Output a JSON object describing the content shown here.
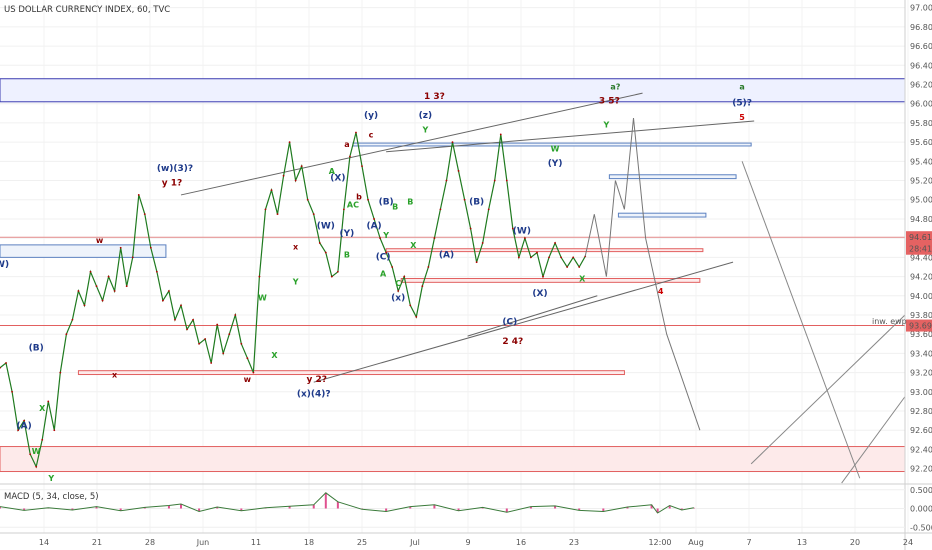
{
  "chart_data": {
    "type": "line",
    "title": "US DOLLAR CURRENCY INDEX, 60, TVC",
    "x_ticks": [
      "14",
      "21",
      "28",
      "Jun",
      "11",
      "18",
      "25",
      "Jul",
      "9",
      "16",
      "23",
      "12:00",
      "Aug",
      "7",
      "13",
      "20",
      "24"
    ],
    "y_ticks": [
      "97.00",
      "96.80",
      "96.60",
      "96.40",
      "96.20",
      "96.00",
      "95.80",
      "95.60",
      "95.40",
      "95.20",
      "95.00",
      "94.80",
      "94.60",
      "94.40",
      "94.20",
      "94.00",
      "93.80",
      "93.60",
      "93.40",
      "93.20",
      "93.00",
      "92.80",
      "92.60",
      "92.40",
      "92.20"
    ],
    "ylim": [
      92.04,
      97.08
    ],
    "price_tags": [
      {
        "text": "94.61",
        "value": 94.61
      },
      {
        "text": "28:41",
        "value": 94.49
      },
      {
        "text": "93.69",
        "value": 93.69
      }
    ],
    "inv_label": "inw. ewp",
    "series": [
      {
        "t": [
          0,
          2,
          4,
          6,
          8,
          10,
          12,
          14,
          16,
          18,
          20,
          22,
          24,
          26,
          28,
          30,
          32,
          34,
          36,
          38,
          40,
          42,
          44,
          46,
          48,
          50,
          52,
          54,
          56,
          58,
          60,
          62,
          64,
          66,
          68,
          70,
          72,
          74,
          76,
          78,
          80,
          82,
          84,
          86,
          88,
          90,
          92,
          94,
          96,
          98,
          100,
          102,
          104,
          106,
          108,
          110,
          112,
          114,
          116,
          118,
          120,
          122,
          124,
          126,
          128,
          130,
          132,
          134,
          136,
          138,
          140,
          142,
          144,
          146,
          148,
          150,
          152,
          154,
          156,
          158,
          160,
          162,
          164,
          166,
          168,
          170,
          172,
          174,
          176,
          178,
          180,
          182,
          184,
          186,
          188,
          190,
          192,
          194
        ],
        "values": [
          93.25,
          93.3,
          93.0,
          92.6,
          92.7,
          92.35,
          92.22,
          92.5,
          92.9,
          92.6,
          93.2,
          93.6,
          93.75,
          94.05,
          93.9,
          94.25,
          94.1,
          93.95,
          94.2,
          94.05,
          94.5,
          94.1,
          94.4,
          95.05,
          94.85,
          94.5,
          94.25,
          93.95,
          94.05,
          93.75,
          93.9,
          93.65,
          93.75,
          93.5,
          93.55,
          93.3,
          93.7,
          93.4,
          93.6,
          93.8,
          93.5,
          93.35,
          93.2,
          94.2,
          94.9,
          95.1,
          94.85,
          95.25,
          95.6,
          95.2,
          95.35,
          95.0,
          94.85,
          94.55,
          94.45,
          94.2,
          94.25,
          94.9,
          95.45,
          95.7,
          95.35,
          95.0,
          94.8,
          94.6,
          94.45,
          94.3,
          94.05,
          94.2,
          93.9,
          93.78,
          94.1,
          94.3,
          94.6,
          94.9,
          95.2,
          95.6,
          95.3,
          95.0,
          94.7,
          94.35,
          94.55,
          94.9,
          95.2,
          95.68,
          95.2,
          94.7,
          94.4,
          94.6,
          94.4,
          94.45,
          94.2,
          94.4,
          94.55,
          94.4,
          94.3,
          94.4,
          94.3,
          94.41
        ],
        "name": ""
      }
    ],
    "projection": {
      "t": [
        194,
        197,
        201,
        204,
        207,
        210,
        214,
        221,
        232
      ],
      "values": [
        94.41,
        94.85,
        94.2,
        95.2,
        94.9,
        95.85,
        94.6,
        93.6,
        92.6
      ]
    },
    "wave_labels": [
      {
        "text": "(W)",
        "color": "#1e3a8a",
        "t": 0,
        "v": 94.3
      },
      {
        "text": "(A)",
        "color": "#1e3a8a",
        "t": 8,
        "v": 92.62
      },
      {
        "text": "(B)",
        "color": "#1e3a8a",
        "t": 12,
        "v": 93.43
      },
      {
        "text": "X",
        "color": "#2aa12a",
        "t": 14,
        "v": 92.8
      },
      {
        "text": "W",
        "color": "#2aa12a",
        "t": 12,
        "v": 92.35
      },
      {
        "text": "Y",
        "color": "#2aa12a",
        "t": 17,
        "v": 92.07
      },
      {
        "text": "w",
        "color": "#8b0000",
        "t": 33,
        "v": 94.55
      },
      {
        "text": "x",
        "color": "#8b0000",
        "t": 38,
        "v": 93.15
      },
      {
        "text": "(w)(3)?",
        "color": "#1e3a8a",
        "t": 58,
        "v": 95.3
      },
      {
        "text": "y 1?",
        "color": "#8b0000",
        "t": 57,
        "v": 95.15
      },
      {
        "text": "w",
        "color": "#8b0000",
        "t": 82,
        "v": 93.1
      },
      {
        "text": "W",
        "color": "#2aa12a",
        "t": 87,
        "v": 93.95
      },
      {
        "text": "X",
        "color": "#2aa12a",
        "t": 91,
        "v": 93.35
      },
      {
        "text": "Y",
        "color": "#2aa12a",
        "t": 98,
        "v": 94.12
      },
      {
        "text": "x",
        "color": "#8b0000",
        "t": 98,
        "v": 94.48
      },
      {
        "text": "y 2?",
        "color": "#8b0000",
        "t": 105,
        "v": 93.1
      },
      {
        "text": "(x)(4)?",
        "color": "#1e3a8a",
        "t": 104,
        "v": 92.95
      },
      {
        "text": "(W)",
        "color": "#1e3a8a",
        "t": 108,
        "v": 94.7
      },
      {
        "text": "(X)",
        "color": "#1e3a8a",
        "t": 112,
        "v": 95.2
      },
      {
        "text": "(Y)",
        "color": "#1e3a8a",
        "t": 115,
        "v": 94.62
      },
      {
        "text": "B",
        "color": "#2aa12a",
        "t": 115,
        "v": 94.4
      },
      {
        "text": "A",
        "color": "#2aa12a",
        "t": 110,
        "v": 95.27
      },
      {
        "text": "AC",
        "color": "#2aa12a",
        "t": 117,
        "v": 94.92
      },
      {
        "text": "a",
        "color": "#8b0000",
        "t": 115,
        "v": 95.55
      },
      {
        "text": "b",
        "color": "#8b0000",
        "t": 119,
        "v": 95.0
      },
      {
        "text": "c",
        "color": "#8b0000",
        "t": 123,
        "v": 95.65
      },
      {
        "text": "(y)",
        "color": "#1e3a8a",
        "t": 123,
        "v": 95.85
      },
      {
        "text": "B",
        "color": "#2aa12a",
        "t": 131,
        "v": 94.9
      },
      {
        "text": "(A)",
        "color": "#1e3a8a",
        "t": 124,
        "v": 94.7
      },
      {
        "text": "(B)",
        "color": "#1e3a8a",
        "t": 128,
        "v": 94.95
      },
      {
        "text": "(C)",
        "color": "#1e3a8a",
        "t": 127,
        "v": 94.38
      },
      {
        "text": "A",
        "color": "#2aa12a",
        "t": 127,
        "v": 94.2
      },
      {
        "text": "Y",
        "color": "#2aa12a",
        "t": 128,
        "v": 94.6
      },
      {
        "text": "C",
        "color": "#2aa12a",
        "t": 132,
        "v": 94.1
      },
      {
        "text": "X",
        "color": "#2aa12a",
        "t": 137,
        "v": 94.5
      },
      {
        "text": "(x)",
        "color": "#1e3a8a",
        "t": 132,
        "v": 93.95
      },
      {
        "text": "B",
        "color": "#2aa12a",
        "t": 136,
        "v": 94.95
      },
      {
        "text": "(z)",
        "color": "#1e3a8a",
        "t": 141,
        "v": 95.85
      },
      {
        "text": "Y",
        "color": "#2aa12a",
        "t": 141,
        "v": 95.7
      },
      {
        "text": "1 3?",
        "color": "#8b0000",
        "t": 144,
        "v": 96.05
      },
      {
        "text": "(A)",
        "color": "#1e3a8a",
        "t": 148,
        "v": 94.4
      },
      {
        "text": "(B)",
        "color": "#1e3a8a",
        "t": 158,
        "v": 94.95
      },
      {
        "text": "(C)",
        "color": "#1e3a8a",
        "t": 169,
        "v": 93.7
      },
      {
        "text": "2 4?",
        "color": "#8b0000",
        "t": 170,
        "v": 93.5
      },
      {
        "text": "(W)",
        "color": "#1e3a8a",
        "t": 173,
        "v": 94.65
      },
      {
        "text": "(X)",
        "color": "#1e3a8a",
        "t": 179,
        "v": 94.0
      },
      {
        "text": "(Y)",
        "color": "#1e3a8a",
        "t": 184,
        "v": 95.35
      },
      {
        "text": "W",
        "color": "#2aa12a",
        "t": 184,
        "v": 95.5
      },
      {
        "text": "X",
        "color": "#2aa12a",
        "t": 193,
        "v": 94.15
      },
      {
        "text": "Y",
        "color": "#2aa12a",
        "t": 201,
        "v": 95.75
      },
      {
        "text": "3 5?",
        "color": "#8b0000",
        "t": 202,
        "v": 96.0
      },
      {
        "text": "a?",
        "color": "#2a7a2a",
        "t": 204,
        "v": 96.15
      },
      {
        "text": "4",
        "color": "#cc0000",
        "t": 219,
        "v": 94.02
      },
      {
        "text": "a",
        "color": "#2a7a2a",
        "t": 246,
        "v": 96.15
      },
      {
        "text": "(5)?",
        "color": "#1e3a8a",
        "t": 246,
        "v": 95.98
      },
      {
        "text": "5",
        "color": "#cc0000",
        "t": 246,
        "v": 95.83
      }
    ],
    "zones": [
      {
        "t0": 0,
        "t1": 300,
        "v0": 96.02,
        "v1": 96.26,
        "fill": "#eef1ff",
        "stroke": "#3a3ab0"
      },
      {
        "t0": 0,
        "t1": 300,
        "v0": 92.17,
        "v1": 92.43,
        "fill": "#fdeaea",
        "stroke": "#e26060"
      },
      {
        "t0": 0,
        "t1": 55,
        "v0": 94.4,
        "v1": 94.53,
        "fill": "#eef3fb",
        "stroke": "#5b80c0"
      },
      {
        "t0": 26,
        "t1": 207,
        "v0": 93.18,
        "v1": 93.22,
        "fill": "#fdeaea",
        "stroke": "#e26060"
      },
      {
        "t0": 117,
        "t1": 249,
        "v0": 95.56,
        "v1": 95.59,
        "fill": "#eef3fb",
        "stroke": "#5b80c0"
      },
      {
        "t0": 128,
        "t1": 233,
        "v0": 94.46,
        "v1": 94.49,
        "fill": "#fdeaea",
        "stroke": "#e26060"
      },
      {
        "t0": 133,
        "t1": 232,
        "v0": 94.14,
        "v1": 94.18,
        "fill": "#fdeaea",
        "stroke": "#e26060"
      },
      {
        "t0": 202,
        "t1": 244,
        "v0": 95.22,
        "v1": 95.26,
        "fill": "#eef3fb",
        "stroke": "#5b80c0"
      },
      {
        "t0": 205,
        "t1": 234,
        "v0": 94.82,
        "v1": 94.86,
        "fill": "#eef3fb",
        "stroke": "#5b80c0"
      }
    ],
    "hlines": [
      {
        "v": 94.61,
        "color": "#e48a8a"
      },
      {
        "v": 93.69,
        "color": "#e26060"
      }
    ],
    "trendlines": [
      {
        "t0": 60,
        "v0": 95.05,
        "t1": 213,
        "v1": 96.11,
        "color": "#666666"
      },
      {
        "t0": 128,
        "v0": 95.5,
        "t1": 250,
        "v1": 95.82,
        "color": "#666666"
      },
      {
        "t0": 104,
        "v0": 93.1,
        "t1": 243,
        "v1": 94.35,
        "color": "#666666"
      },
      {
        "t0": 155,
        "v0": 93.58,
        "t1": 198,
        "v1": 94.0,
        "color": "#666666"
      },
      {
        "t0": 249,
        "v0": 92.25,
        "t1": 300,
        "v1": 93.8,
        "color": "#888888"
      },
      {
        "t0": 279,
        "v0": 92.05,
        "t1": 300,
        "v1": 92.95,
        "color": "#888888"
      },
      {
        "t0": 246,
        "v0": 95.4,
        "t1": 285,
        "v1": 92.1,
        "color": "#888888"
      }
    ]
  },
  "macd": {
    "label": "MACD (5, 34, close, 5)",
    "y_ticks": [
      "0.5000",
      "0.0000",
      "-0.5000"
    ],
    "ylim": [
      -0.6,
      0.6
    ],
    "x": [
      0,
      8,
      16,
      24,
      32,
      40,
      48,
      56,
      60,
      66,
      72,
      80,
      88,
      96,
      104,
      108,
      112,
      120,
      128,
      136,
      144,
      152,
      160,
      168,
      176,
      184,
      192,
      200,
      208,
      216,
      218,
      222,
      226,
      230
    ],
    "values": [
      0.05,
      -0.05,
      0.02,
      -0.04,
      0.05,
      -0.06,
      0.03,
      0.08,
      0.12,
      -0.08,
      0.04,
      -0.06,
      0.02,
      0.06,
      0.1,
      0.42,
      0.18,
      -0.02,
      -0.08,
      0.05,
      0.1,
      -0.06,
      0.03,
      -0.1,
      0.05,
      0.07,
      -0.05,
      -0.08,
      0.04,
      0.1,
      -0.12,
      0.08,
      -0.04,
      0.02
    ]
  }
}
